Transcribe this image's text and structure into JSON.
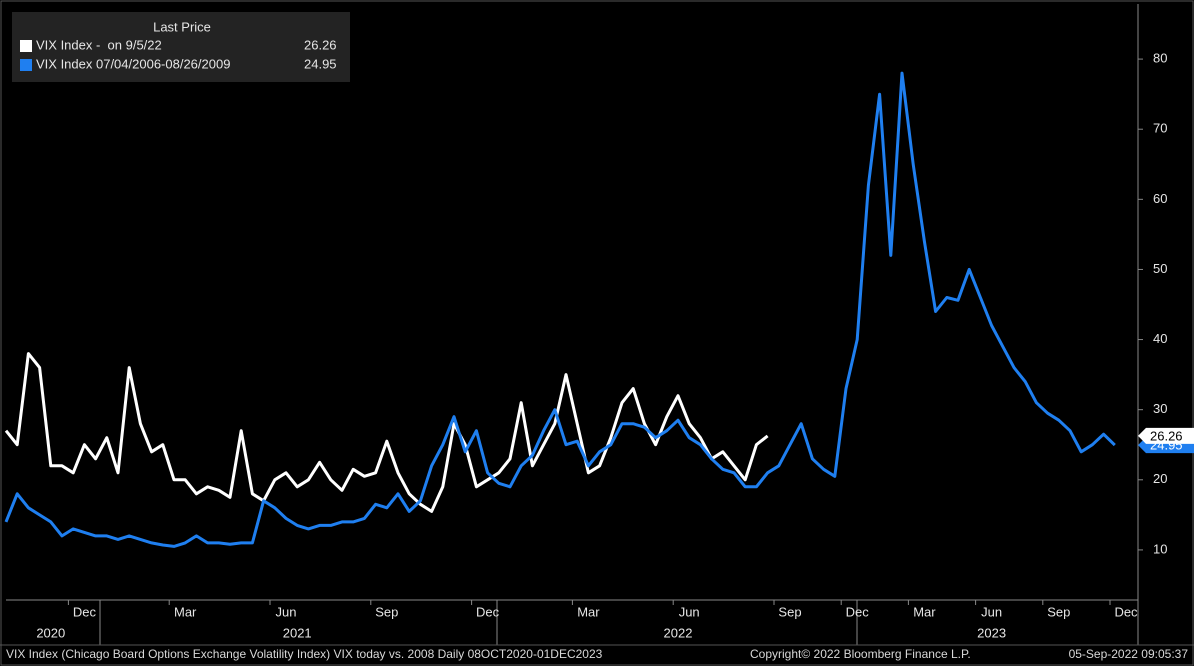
{
  "chart_data": {
    "type": "line",
    "legend_title": "Last Price",
    "footer_left": "VIX Index (Chicago Board Options Exchange Volatility Index) VIX today vs. 2008  Daily 08OCT2020-01DEC2023",
    "footer_center": "Copyright© 2022 Bloomberg Finance L.P.",
    "footer_right": "05-Sep-2022 09:05:37",
    "categories": [
      null,
      null,
      null,
      null,
      null,
      null,
      null,
      "Dec",
      null,
      null,
      null,
      null,
      null,
      null,
      null,
      null,
      "Mar",
      null,
      null,
      null,
      null,
      null,
      null,
      null,
      null,
      "Jun",
      null,
      null,
      null,
      null,
      null,
      null,
      null,
      null,
      "Sep",
      null,
      null,
      null,
      null,
      null,
      null,
      null,
      null,
      "Dec",
      null,
      null,
      null,
      null,
      null,
      null,
      null,
      null,
      "Mar",
      null,
      null,
      null,
      null,
      null,
      null,
      null,
      null,
      "Jun",
      null,
      null,
      null,
      null,
      null,
      null,
      null,
      null,
      "Sep",
      null,
      null,
      null,
      null,
      null,
      "Dec",
      null,
      null,
      null,
      null,
      null,
      "Mar",
      null,
      null,
      null,
      null,
      null,
      "Jun",
      null,
      null,
      null,
      null,
      null,
      "Sep",
      null,
      null,
      null,
      null,
      null,
      "Dec"
    ],
    "years": [
      null,
      null,
      null,
      null,
      "2020",
      null,
      null,
      null,
      null,
      null,
      null,
      null,
      null,
      null,
      null,
      null,
      null,
      null,
      null,
      null,
      null,
      null,
      null,
      null,
      null,
      null,
      "2021",
      null,
      null,
      null,
      null,
      null,
      null,
      null,
      null,
      null,
      null,
      null,
      null,
      null,
      null,
      null,
      null,
      null,
      null,
      null,
      null,
      null,
      null,
      null,
      null,
      null,
      null,
      null,
      null,
      null,
      null,
      null,
      null,
      null,
      "2022",
      null,
      null,
      null,
      null,
      null,
      null,
      null,
      null,
      null,
      null,
      null,
      null,
      null,
      null,
      null,
      null,
      null,
      null,
      null,
      null,
      null,
      null,
      null,
      null,
      null,
      null,
      null,
      "2023",
      null,
      null,
      null,
      null,
      null,
      null,
      null,
      null,
      null,
      null,
      null,
      null
    ],
    "series": [
      {
        "name": "VIX Index -  on 9/5/22",
        "color": "#ffffff",
        "values": [
          27,
          25,
          38,
          36,
          22,
          22,
          21,
          25,
          23,
          26,
          21,
          36,
          28,
          24,
          25,
          20,
          20,
          18,
          19,
          18.5,
          17.5,
          27,
          18,
          17,
          20,
          21,
          19,
          20,
          22.5,
          20,
          18.5,
          21.5,
          20.5,
          21,
          25.5,
          21,
          18,
          16.5,
          15.5,
          19,
          28,
          25,
          19,
          20,
          21,
          23,
          31,
          22,
          25,
          28,
          35,
          28,
          21,
          22,
          26,
          31,
          33,
          28,
          25,
          29,
          32,
          28,
          26,
          23,
          24,
          22,
          20,
          25,
          26.26,
          null,
          null,
          null,
          null,
          null,
          null,
          null,
          null,
          null,
          null,
          null,
          null,
          null,
          null,
          null,
          null,
          null,
          null,
          null,
          null,
          null,
          null,
          null,
          null,
          null,
          null,
          null,
          null,
          null,
          null,
          null,
          null
        ]
      },
      {
        "name": "VIX Index 07/04/2006-08/26/2009",
        "color": "#1f7ff0",
        "values": [
          14,
          18,
          16,
          15,
          14,
          12,
          13,
          12.5,
          12,
          12,
          11.5,
          12,
          11.5,
          11,
          10.7,
          10.5,
          11,
          12,
          11,
          11,
          10.8,
          11,
          11,
          17,
          16,
          14.5,
          13.5,
          13,
          13.5,
          13.5,
          14,
          14,
          14.5,
          16.5,
          16,
          18,
          15.5,
          17,
          22,
          25,
          29,
          24,
          27,
          21,
          19.5,
          19,
          22,
          23.5,
          27,
          30,
          25,
          25.5,
          22,
          24,
          25,
          28,
          28,
          27.5,
          26,
          27,
          28.5,
          26,
          25,
          23,
          21.5,
          21,
          19,
          19,
          21,
          22,
          25,
          28,
          23,
          21.5,
          20.5,
          33,
          40,
          62,
          75,
          52,
          78,
          65,
          54,
          44,
          46,
          45.6,
          50,
          46,
          42,
          39,
          36,
          34,
          31,
          29.5,
          28.5,
          27,
          24,
          25,
          26.5,
          24.95,
          null
        ]
      }
    ],
    "ylim": [
      3,
      88
    ],
    "yticks": [
      10,
      20,
      30,
      40,
      50,
      60,
      70,
      80
    ],
    "grid": false,
    "legend": "upper left"
  }
}
